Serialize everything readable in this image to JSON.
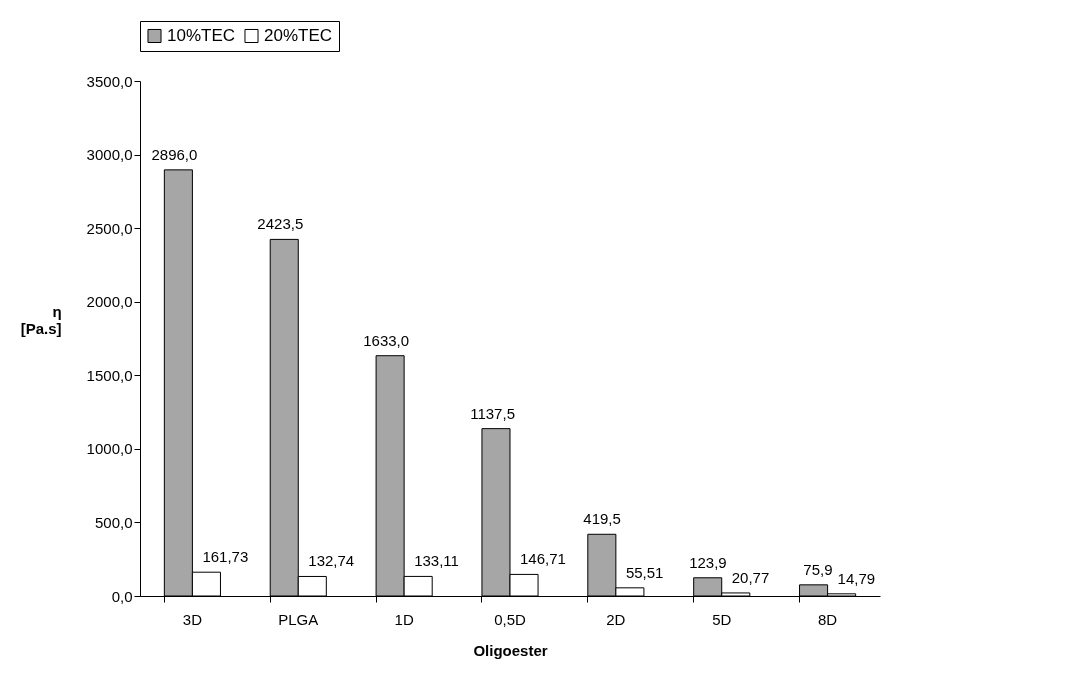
{
  "chart_data": {
    "type": "bar",
    "xlabel": "Oligoester",
    "ylabel": "η [Pa.s]",
    "categories": [
      "3D",
      "PLGA",
      "1D",
      "0,5D",
      "2D",
      "5D",
      "8D"
    ],
    "series": [
      {
        "name": "10%TEC",
        "color": "#a6a6a6",
        "values": [
          2896.0,
          2423.5,
          1633.0,
          1137.5,
          419.5,
          123.9,
          75.9
        ],
        "value_labels": [
          "2896,0",
          "2423,5",
          "1633,0",
          "1137,5",
          "419,5",
          "123,9",
          "75,9"
        ]
      },
      {
        "name": "20%TEC",
        "color": "#ffffff",
        "values": [
          161.73,
          132.74,
          133.11,
          146.71,
          55.51,
          20.77,
          14.79
        ],
        "value_labels": [
          "161,73",
          "132,74",
          "133,11",
          "146,71",
          "55,51",
          "20,77",
          "14,79"
        ]
      }
    ],
    "ylim": [
      0,
      3500
    ],
    "yticks": [
      {
        "value": 0,
        "label": "0,0"
      },
      {
        "value": 500,
        "label": "500,0"
      },
      {
        "value": 1000,
        "label": "1000,0"
      },
      {
        "value": 1500,
        "label": "1500,0"
      },
      {
        "value": 2000,
        "label": "2000,0"
      },
      {
        "value": 2500,
        "label": "2500,0"
      },
      {
        "value": 3000,
        "label": "3000,0"
      },
      {
        "value": 3500,
        "label": "3500,0"
      }
    ],
    "grid": false,
    "legend": "top"
  }
}
